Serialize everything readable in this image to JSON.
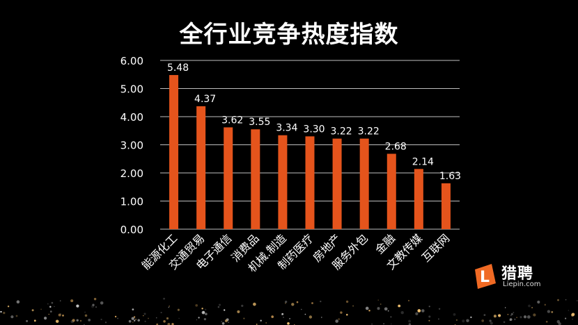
{
  "title": "全行业竞争热度指数",
  "logo": {
    "name_cn": "猎聘",
    "name_en": "Liepin.com",
    "mark_letter": "L"
  },
  "colors": {
    "bar": "#e5541c",
    "background": "#000000",
    "text": "#ffffff",
    "grid": "#bfbfbf",
    "logo_orange": "#f06a24"
  },
  "chart_data": {
    "type": "bar",
    "title": "全行业竞争热度指数",
    "categories": [
      "能源化工",
      "交通贸易",
      "电子通信",
      "消费品",
      "机械.制造",
      "制药医疗",
      "房地产",
      "服务外包",
      "金融",
      "文教传媒",
      "互联网"
    ],
    "values": [
      5.48,
      4.37,
      3.62,
      3.55,
      3.34,
      3.3,
      3.22,
      3.22,
      2.68,
      2.14,
      1.63
    ],
    "value_labels": [
      "5.48",
      "4.37",
      "3.62",
      "3.55",
      "3.34",
      "3.30",
      "3.22",
      "3.22",
      "2.68",
      "2.14",
      "1.63"
    ],
    "yticks": [
      0,
      1,
      2,
      3,
      4,
      5,
      6
    ],
    "ytick_labels": [
      "0.00",
      "1.00",
      "2.00",
      "3.00",
      "4.00",
      "5.00",
      "6.00"
    ],
    "ylim": [
      0,
      6
    ],
    "grid": true,
    "legend": "none"
  }
}
